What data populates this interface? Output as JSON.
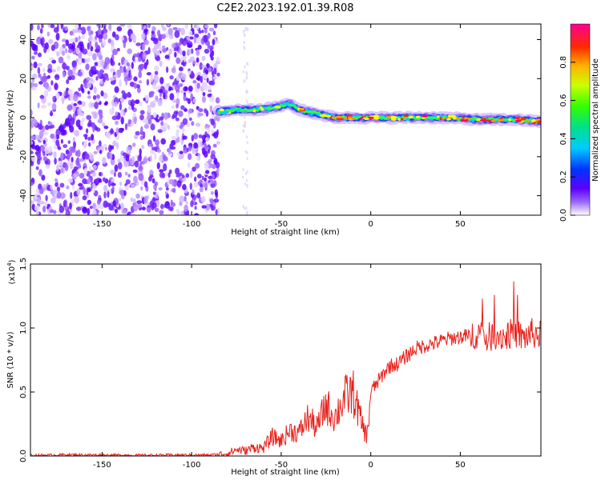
{
  "title": "C2E2.2023.192.01.39.R08",
  "chart_data": [
    {
      "type": "heatmap",
      "xlabel": "Height of straight line (km)",
      "ylabel": "Frequency (Hz)",
      "xlim": [
        -190,
        95
      ],
      "ylim": [
        -50,
        48
      ],
      "x_ticks": [
        -150,
        -100,
        -50,
        0,
        50
      ],
      "y_ticks": [
        -40,
        -20,
        0,
        20,
        40
      ],
      "colorbar": {
        "label": "Normalized spectral amplitude",
        "range": [
          0.0,
          1.0
        ],
        "ticks": [
          0.0,
          0.2,
          0.4,
          0.6,
          0.8
        ]
      },
      "noise_region_x": [
        -190,
        -85
      ],
      "signal_ridge": [
        {
          "x": -85,
          "y": 3
        },
        {
          "x": -75,
          "y": 4
        },
        {
          "x": -65,
          "y": 4
        },
        {
          "x": -55,
          "y": 5
        },
        {
          "x": -45,
          "y": 7
        },
        {
          "x": -40,
          "y": 4
        },
        {
          "x": -30,
          "y": 2
        },
        {
          "x": -20,
          "y": 0
        },
        {
          "x": -10,
          "y": 0
        },
        {
          "x": 0,
          "y": 0
        },
        {
          "x": 20,
          "y": 0
        },
        {
          "x": 40,
          "y": 0
        },
        {
          "x": 60,
          "y": -1
        },
        {
          "x": 80,
          "y": -1
        },
        {
          "x": 95,
          "y": -2
        }
      ],
      "grid": false
    },
    {
      "type": "line",
      "xlabel": "Height of straight line (km)",
      "ylabel": "SNR (10 * v/v)",
      "yscale_label": "(x10",
      "yscale_exp": "4",
      "yscale_close": ")",
      "xlim": [
        -190,
        95
      ],
      "ylim": [
        0.0,
        1.5
      ],
      "x_ticks": [
        -150,
        -100,
        -50,
        0,
        50
      ],
      "y_ticks": [
        0.0,
        0.5,
        1.0,
        1.5
      ],
      "y_tick_labels": [
        "0.0",
        "0.5",
        "1.0",
        "1.5"
      ],
      "color": "#e8221c",
      "series": [
        {
          "x": [
            -190,
            -170,
            -150,
            -130,
            -110,
            -90,
            -80,
            -75,
            -70,
            -65,
            -60,
            -55,
            -50,
            -45,
            -40,
            -35,
            -30,
            -25,
            -20,
            -15,
            -10,
            -5,
            -2,
            0,
            5,
            10,
            15,
            20,
            25,
            30,
            35,
            40,
            45,
            50,
            55,
            60,
            65,
            70,
            75,
            80,
            85,
            90,
            95
          ],
          "y": [
            0.005,
            0.01,
            0.008,
            0.006,
            0.008,
            0.008,
            0.02,
            0.05,
            0.04,
            0.07,
            0.06,
            0.15,
            0.12,
            0.2,
            0.18,
            0.3,
            0.22,
            0.4,
            0.3,
            0.45,
            0.5,
            0.25,
            0.15,
            0.5,
            0.6,
            0.7,
            0.72,
            0.78,
            0.84,
            0.86,
            0.88,
            0.9,
            0.92,
            0.93,
            0.94,
            0.96,
            0.92,
            0.95,
            0.93,
            0.97,
            0.92,
            0.96,
            0.94
          ]
        }
      ],
      "grid": false
    }
  ]
}
